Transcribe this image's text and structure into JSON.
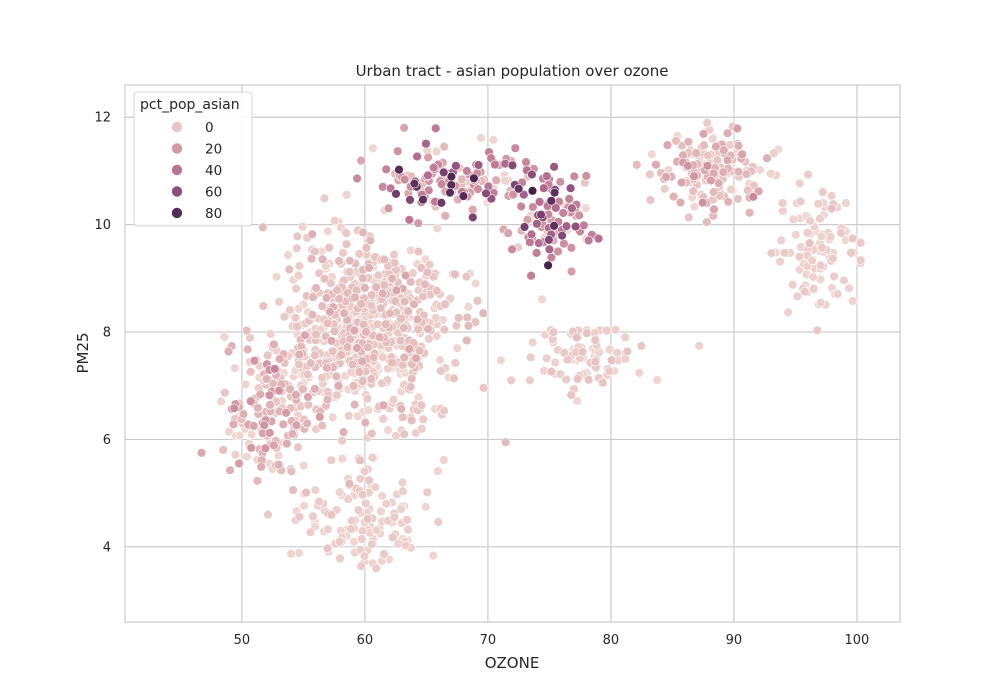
{
  "chart_data": {
    "type": "scatter",
    "title": "Urban tract - asian population over ozone",
    "xlabel": "OZONE",
    "ylabel": "PM25",
    "xlim": [
      40.5,
      103.5
    ],
    "ylim": [
      2.6,
      12.6
    ],
    "xticks": [
      "50",
      "60",
      "70",
      "80",
      "90",
      "100"
    ],
    "yticks": [
      "4",
      "6",
      "8",
      "10",
      "12"
    ],
    "grid": true,
    "hue": "pct_pop_asian",
    "legend": {
      "title": "pct_pop_asian",
      "placement": "top-left",
      "entries": [
        {
          "label": "0",
          "value": 0,
          "color": "#e9c5c0"
        },
        {
          "label": "20",
          "value": 20,
          "color": "#d49aa3"
        },
        {
          "label": "40",
          "value": 40,
          "color": "#b97393"
        },
        {
          "label": "60",
          "value": 60,
          "color": "#8c4f7c"
        },
        {
          "label": "80",
          "value": 80,
          "color": "#532e5a"
        }
      ]
    },
    "colormap": [
      "#f0d6d0",
      "#d49aa3",
      "#b97393",
      "#8c4f7c",
      "#401e48"
    ],
    "regions": [
      {
        "ozone": 60,
        "pm25": 8.0,
        "spread_x": 6,
        "spread_y": 1.5,
        "share": 0.45,
        "pct_asian": 5
      },
      {
        "ozone": 67,
        "pm25": 10.8,
        "spread_x": 5,
        "spread_y": 0.5,
        "share": 0.1,
        "pct_asian": 20
      },
      {
        "ozone": 75,
        "pm25": 10.2,
        "spread_x": 3,
        "spread_y": 0.8,
        "share": 0.08,
        "pct_asian": 25
      },
      {
        "ozone": 52,
        "pm25": 6.5,
        "spread_x": 3,
        "spread_y": 1.2,
        "share": 0.1,
        "pct_asian": 10
      },
      {
        "ozone": 88,
        "pm25": 11.0,
        "spread_x": 4,
        "spread_y": 0.6,
        "share": 0.1,
        "pct_asian": 8
      },
      {
        "ozone": 78,
        "pm25": 7.5,
        "spread_x": 4,
        "spread_y": 0.5,
        "share": 0.05,
        "pct_asian": 3
      },
      {
        "ozone": 60,
        "pm25": 4.5,
        "spread_x": 4,
        "spread_y": 0.8,
        "share": 0.07,
        "pct_asian": 2
      },
      {
        "ozone": 97,
        "pm25": 9.5,
        "spread_x": 3,
        "spread_y": 1.0,
        "share": 0.05,
        "pct_asian": 2
      }
    ],
    "point_count": 1600
  }
}
